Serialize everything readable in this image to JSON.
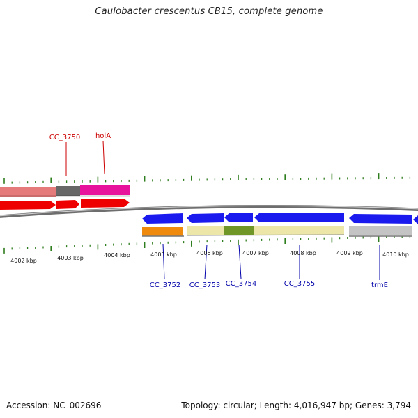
{
  "title": "Caulobacter crescentus CB15, complete genome",
  "footer": {
    "accession": "Accession: NC_002696",
    "summary": "Topology: circular; Length: 4,016,947 bp; Genes: 3,794"
  },
  "axis_labels": [
    "4002 kbp",
    "4003 kbp",
    "4004 kbp",
    "4005 kbp",
    "4006 kbp",
    "4007 kbp",
    "4008 kbp",
    "4009 kbp",
    "4010 kbp"
  ],
  "gene_labels_top": [
    "CC_3750",
    "holA"
  ],
  "gene_labels_bottom": [
    "CC_3752",
    "CC_3753",
    "CC_3754",
    "CC_3755",
    "trmE"
  ],
  "colors": {
    "top_label": "#cc0000",
    "bottom_label": "#0000aa",
    "tick": "#2e7d1e",
    "forward_cds": "#ee0000",
    "reverse_cds": "#1a1aee",
    "backbone": "#6e6e6e",
    "salmon": "#e67b7b",
    "dark_grey": "#686868",
    "magenta": "#e8139c",
    "orange": "#f08a0c",
    "pale_yellow": "#ece7a8",
    "olive_green": "#6f9626",
    "light_grey": "#c4c4c4"
  }
}
